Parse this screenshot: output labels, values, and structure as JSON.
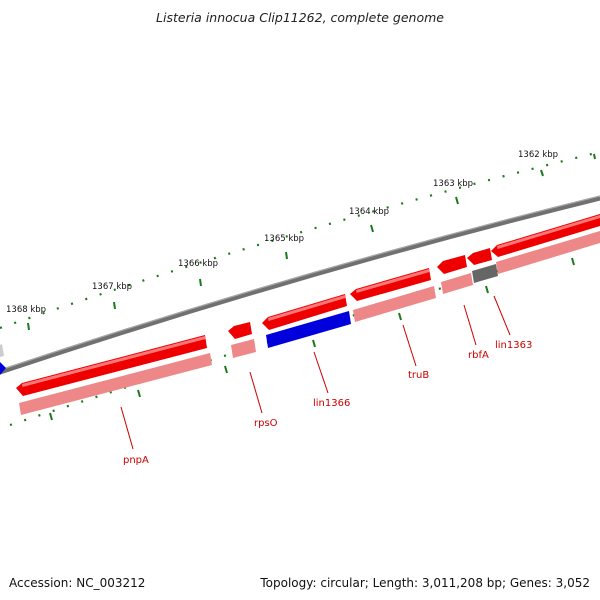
{
  "title": "Listeria innocua Clip11262, complete genome",
  "footer": {
    "accession": "Accession: NC_003212",
    "summary": "Topology: circular; Length: 3,011,208 bp; Genes: 3,052"
  },
  "colors": {
    "forward": "#ee0000",
    "forward_shade": "#ee8888",
    "reverse": "#0000dd",
    "gray_feature": "#666666",
    "backbone": "#808080",
    "tick": "#1a7a1a",
    "label": "#cc0000"
  },
  "axis": {
    "ticks": [
      {
        "label": "1362 kbp"
      },
      {
        "label": "1363 kbp"
      },
      {
        "label": "1364 kbp"
      },
      {
        "label": "1365 kbp"
      },
      {
        "label": "1366 kbp"
      },
      {
        "label": "1367 kbp"
      },
      {
        "label": "1368 kbp"
      }
    ]
  },
  "genes": [
    {
      "name": "pnpA"
    },
    {
      "name": "rpsO"
    },
    {
      "name": "lin1366"
    },
    {
      "name": "truB"
    },
    {
      "name": "rbfA"
    },
    {
      "name": "lin1363"
    }
  ]
}
